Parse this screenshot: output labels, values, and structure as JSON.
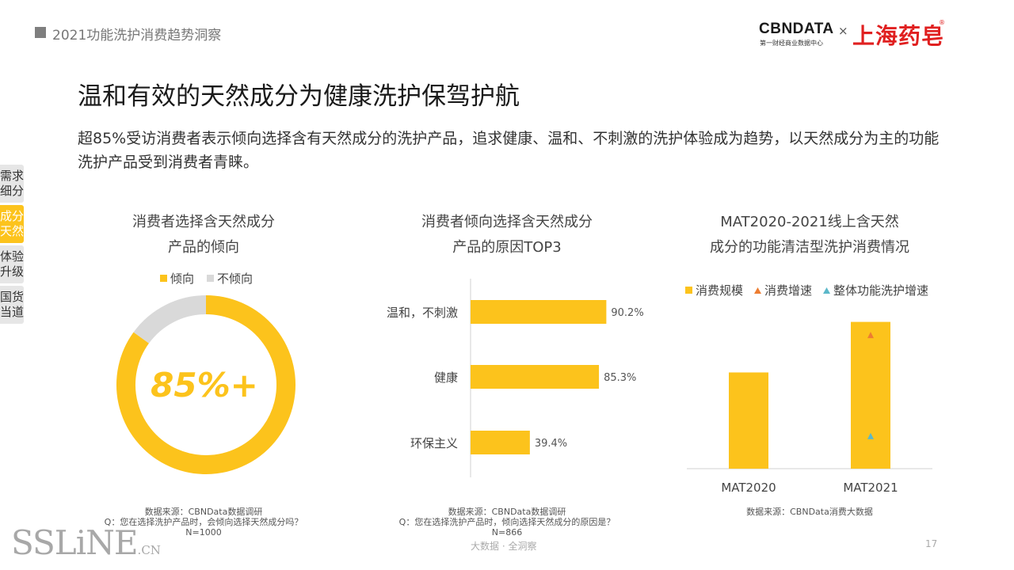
{
  "header": {
    "section_title": "2021功能洗护消费趋势洞察",
    "brand": {
      "cbndata": "CBNDATA",
      "cbndata_sub": "第一财经商业数据中心",
      "times": "×",
      "partner": "上海药皂",
      "registered": "®"
    }
  },
  "main": {
    "title": "温和有效的天然成分为健康洗护保驾护航",
    "description": "超85%受访消费者表示倾向选择含有天然成分的洗护产品，追求健康、温和、不刺激的洗护体验成为趋势，以天然成分为主的功能洗护产品受到消费者青睐。"
  },
  "side_tabs": [
    {
      "label": "需求细分",
      "active": false
    },
    {
      "label": "成分天然",
      "active": true
    },
    {
      "label": "体验升级",
      "active": false
    },
    {
      "label": "国货当道",
      "active": false
    }
  ],
  "panels": {
    "donut": {
      "title_line1": "消费者选择含天然成分",
      "title_line2": "产品的倾向",
      "center_label": "85%+",
      "source": [
        "数据来源：CBNData数据调研",
        "Q：您在选择洗护产品时，会倾向选择天然成分吗？",
        "N=1000"
      ]
    },
    "bars": {
      "title_line1": "消费者倾向选择含天然成分",
      "title_line2": "产品的原因TOP3",
      "source": [
        "数据来源：CBNData数据调研",
        "Q：您在选择洗护产品时，倾向选择天然成分的原因是？",
        "N=866"
      ]
    },
    "columns": {
      "title_line1": "MAT2020-2021线上含天然",
      "title_line2": "成分的功能清洁型洗护消费情况",
      "source": [
        "数据来源：CBNData消费大数据"
      ]
    }
  },
  "chart_data": [
    {
      "type": "pie",
      "categories": [
        "倾向",
        "不倾向"
      ],
      "values": [
        85,
        15
      ],
      "colors": [
        "#fcc31c",
        "#d9d9d9"
      ],
      "legend": "top"
    },
    {
      "type": "bar",
      "orientation": "horizontal",
      "categories": [
        "温和，不刺激",
        "健康",
        "环保主义"
      ],
      "values": [
        90.2,
        85.3,
        39.4
      ],
      "value_labels": [
        "90.2%",
        "85.3%",
        "39.4%"
      ],
      "color": "#fcc31c",
      "xlim": [
        0,
        100
      ]
    },
    {
      "type": "bar",
      "categories": [
        "MAT2020",
        "MAT2021"
      ],
      "series": [
        {
          "name": "消费规模",
          "values": [
            59,
            90
          ],
          "color": "#fcc31c",
          "marker": "square"
        },
        {
          "name": "消费增速",
          "values": [
            null,
            82
          ],
          "color": "#ed7d31",
          "marker": "triangle"
        },
        {
          "name": "整体功能洗护增速",
          "values": [
            null,
            20
          ],
          "color": "#5bb8c9",
          "marker": "triangle"
        }
      ],
      "ylim": [
        0,
        100
      ],
      "legend": "top"
    }
  ],
  "footer": {
    "center": "大数据 · 全洞察",
    "page": "17",
    "watermark": "SSLiNE",
    "watermark_suffix": ".CN"
  }
}
